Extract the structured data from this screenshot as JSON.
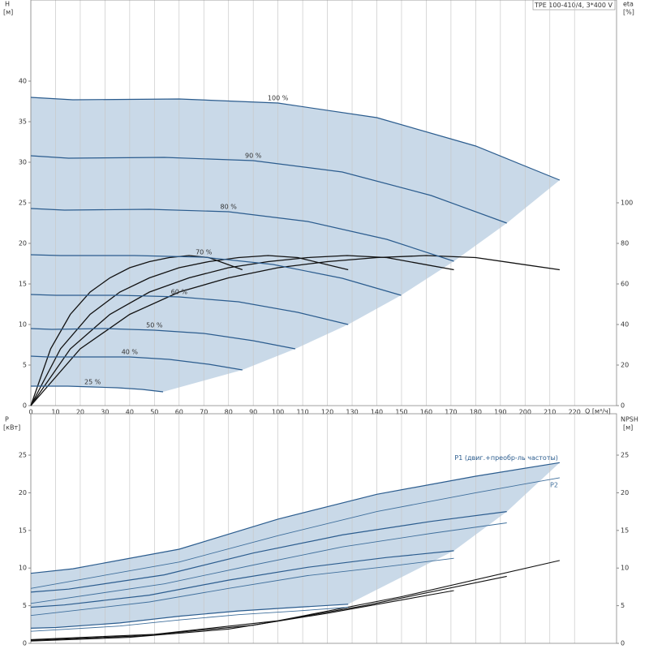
{
  "chart_data": [
    {
      "type": "line",
      "title": "TPE 100-410/4, 3*400 V",
      "y_label": "H",
      "y_unit": "[м]",
      "y2_label": "eta",
      "y2_unit": "[%]",
      "x_label": "Q [м³/ч]",
      "xlim": [
        0,
        237
      ],
      "xticks": [
        0,
        10,
        20,
        30,
        40,
        50,
        60,
        70,
        80,
        90,
        100,
        110,
        120,
        130,
        140,
        150,
        160,
        170,
        180,
        190,
        200,
        210,
        220
      ],
      "ylim": [
        0,
        50
      ],
      "yticks": [
        0,
        5,
        10,
        15,
        20,
        25,
        30,
        35,
        40
      ],
      "y2lim": [
        0,
        200
      ],
      "y2ticks": [
        0,
        20,
        40,
        60,
        80,
        100
      ],
      "grid": "x",
      "shade_color": "#c9d9e8",
      "series": [
        {
          "name": "100 %",
          "color": "#2b5c8e",
          "x": [
            0,
            17,
            60,
            100,
            140,
            180,
            214
          ],
          "y": [
            38,
            37.7,
            37.8,
            37.3,
            35.5,
            32,
            27.8
          ]
        },
        {
          "name": "90 %",
          "color": "#2b5c8e",
          "x": [
            0,
            15.3,
            54,
            90,
            126,
            162,
            192.6
          ],
          "y": [
            30.8,
            30.5,
            30.6,
            30.2,
            28.8,
            25.9,
            22.5
          ]
        },
        {
          "name": "80 %",
          "color": "#2b5c8e",
          "x": [
            0,
            13.6,
            48,
            80,
            112,
            144,
            171.2
          ],
          "y": [
            24.3,
            24.1,
            24.2,
            23.9,
            22.7,
            20.5,
            17.8
          ]
        },
        {
          "name": "70 %",
          "color": "#2b5c8e",
          "x": [
            0,
            11.9,
            42,
            70,
            98,
            126,
            149.8
          ],
          "y": [
            18.6,
            18.5,
            18.5,
            18.3,
            17.4,
            15.7,
            13.6
          ]
        },
        {
          "name": "60 %",
          "color": "#2b5c8e",
          "x": [
            0,
            10.2,
            36,
            60,
            84,
            108,
            128.4
          ],
          "y": [
            13.7,
            13.6,
            13.6,
            13.4,
            12.8,
            11.5,
            10
          ]
        },
        {
          "name": "50 %",
          "color": "#2b5c8e",
          "x": [
            0,
            8.5,
            30,
            50,
            70,
            90,
            107
          ],
          "y": [
            9.5,
            9.4,
            9.5,
            9.3,
            8.9,
            8,
            7
          ]
        },
        {
          "name": "40 %",
          "color": "#2b5c8e",
          "x": [
            0,
            6.8,
            24,
            40,
            56,
            72,
            85.6
          ],
          "y": [
            6.1,
            6,
            6,
            6,
            5.7,
            5.1,
            4.4
          ]
        },
        {
          "name": "25 %",
          "color": "#2b5c8e",
          "x": [
            0,
            4.3,
            15,
            25,
            35,
            45,
            53.5
          ],
          "y": [
            2.4,
            2.4,
            2.4,
            2.3,
            2.2,
            2,
            1.7
          ]
        }
      ],
      "eta_series": [
        {
          "color": "#111111",
          "x": [
            0,
            20,
            40,
            60,
            80,
            100,
            120,
            140,
            160,
            180,
            214
          ],
          "y": [
            0,
            28,
            45,
            56,
            63,
            68,
            71,
            73,
            74,
            73,
            67
          ]
        },
        {
          "color": "#111111",
          "x": [
            0,
            16,
            32,
            48,
            64,
            80,
            96,
            112,
            128,
            144,
            171.2
          ],
          "y": [
            0,
            28,
            45,
            56,
            63,
            68,
            71,
            73,
            74,
            73,
            67
          ]
        },
        {
          "color": "#111111",
          "x": [
            0,
            12,
            24,
            36,
            48,
            60,
            72,
            84,
            96,
            108,
            128.4
          ],
          "y": [
            0,
            28,
            45,
            56,
            63,
            68,
            71,
            73,
            74,
            73,
            67
          ]
        },
        {
          "color": "#111111",
          "x": [
            0,
            8,
            16,
            24,
            32,
            40,
            48,
            56,
            64,
            72,
            85.6
          ],
          "y": [
            0,
            28,
            45,
            56,
            63,
            68,
            71,
            73,
            74,
            73,
            67
          ]
        }
      ]
    },
    {
      "type": "line",
      "y_label": "P",
      "y_unit": "[кВт]",
      "y2_label": "NPSH",
      "y2_unit": "[м]",
      "xlim": [
        0,
        237
      ],
      "ylim": [
        0,
        30.5
      ],
      "yticks": [
        0,
        5,
        10,
        15,
        20,
        25
      ],
      "y2lim": [
        0,
        30.5
      ],
      "y2ticks": [
        0,
        5,
        10,
        15,
        20,
        25
      ],
      "grid": "x",
      "shade_color": "#c9d9e8",
      "series": [
        {
          "name": "P1 (двиг.+преобр-ль частоты)",
          "color": "#2b5c8e",
          "x": [
            0,
            17,
            60,
            100,
            140,
            180,
            214
          ],
          "y": [
            9.3,
            9.9,
            12.5,
            16.5,
            19.8,
            22.2,
            24
          ]
        },
        {
          "color": "#2b5c8e",
          "x": [
            0,
            15.3,
            54,
            90,
            126,
            162,
            192.6
          ],
          "y": [
            6.8,
            7.2,
            9.1,
            12,
            14.4,
            16.2,
            17.5
          ]
        },
        {
          "color": "#2b5c8e",
          "x": [
            0,
            13.6,
            48,
            80,
            112,
            144,
            171.2
          ],
          "y": [
            4.8,
            5.1,
            6.4,
            8.4,
            10.1,
            11.4,
            12.3
          ]
        },
        {
          "color": "#2b5c8e",
          "x": [
            0,
            10.2,
            36,
            60,
            84,
            108,
            128.4
          ],
          "y": [
            2,
            2.1,
            2.7,
            3.6,
            4.3,
            4.8,
            5.2
          ]
        }
      ],
      "p2_series": [
        {
          "name": "P2",
          "color": "#3f6f9c",
          "x": [
            0,
            60,
            100,
            140,
            180,
            214
          ],
          "y": [
            7.3,
            10.8,
            14.3,
            17.5,
            20,
            22
          ]
        },
        {
          "color": "#3f6f9c",
          "x": [
            0,
            54,
            90,
            126,
            162,
            192.6
          ],
          "y": [
            5.3,
            7.9,
            10.4,
            12.8,
            14.6,
            16
          ]
        },
        {
          "color": "#3f6f9c",
          "x": [
            0,
            48,
            80,
            112,
            144,
            171.2
          ],
          "y": [
            3.7,
            5.5,
            7.3,
            9,
            10.2,
            11.3
          ]
        },
        {
          "color": "#3f6f9c",
          "x": [
            0,
            36,
            60,
            84,
            108,
            128.4
          ],
          "y": [
            1.6,
            2.3,
            3.1,
            3.8,
            4.3,
            4.8
          ]
        }
      ],
      "npsh_series": [
        {
          "color": "#111111",
          "x": [
            0,
            50,
            100,
            150,
            214
          ],
          "y": [
            0.5,
            1.2,
            3,
            6.2,
            11
          ]
        },
        {
          "color": "#111111",
          "x": [
            0,
            45,
            90,
            135,
            192.6
          ],
          "y": [
            0.4,
            1,
            2.4,
            5,
            8.9
          ]
        },
        {
          "color": "#111111",
          "x": [
            0,
            40,
            80,
            120,
            171.2
          ],
          "y": [
            0.3,
            0.8,
            1.9,
            4,
            7
          ]
        }
      ]
    }
  ]
}
